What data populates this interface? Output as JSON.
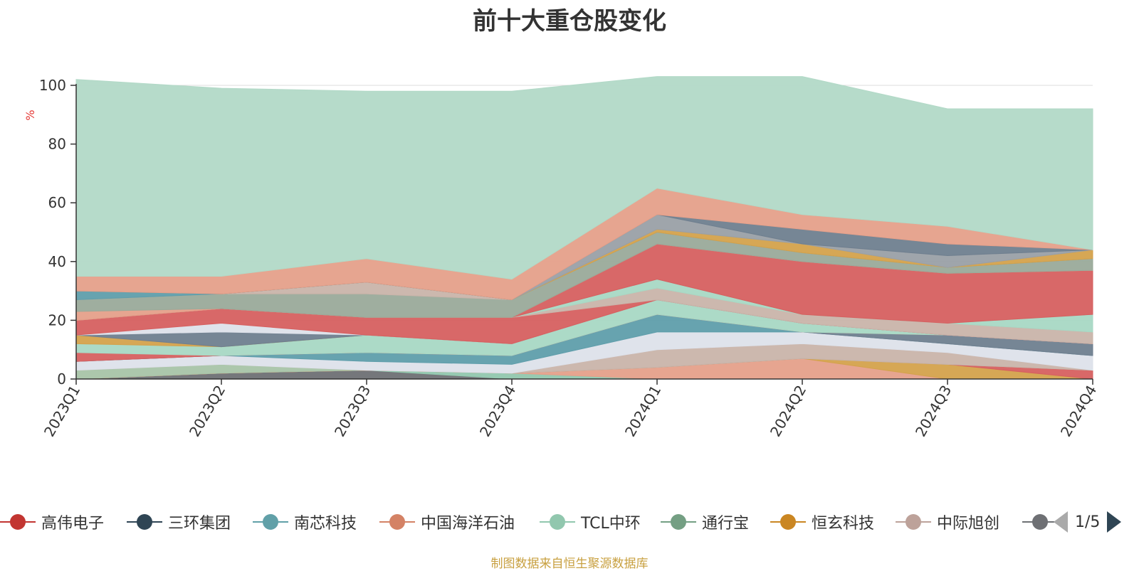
{
  "chart_data": {
    "type": "area",
    "title": "前十大重仓股变化",
    "ylabel": "%",
    "xlabel": "",
    "ylim": [
      0,
      100
    ],
    "yticks": [
      0,
      20,
      40,
      60,
      80,
      100
    ],
    "categories": [
      "2023Q1",
      "2023Q2",
      "2023Q3",
      "2023Q4",
      "2024Q1",
      "2024Q2",
      "2024Q3",
      "2024Q4"
    ],
    "stacked": true,
    "series": [
      {
        "name": "",
        "color": "#6e7074",
        "values": [
          0,
          2,
          3,
          0,
          0,
          0,
          0,
          0
        ]
      },
      {
        "name": "",
        "color": "#91c7ae",
        "values": [
          0,
          0,
          0,
          2,
          0,
          0,
          0,
          0
        ]
      },
      {
        "name": "",
        "color": "#e5a08a",
        "values": [
          0,
          0,
          0,
          0,
          4,
          7,
          0,
          0
        ]
      },
      {
        "name": "",
        "color": "#d4a24c",
        "values": [
          0,
          0,
          0,
          0,
          0,
          0,
          5,
          0
        ]
      },
      {
        "name": "",
        "color": "#d66060",
        "values": [
          0,
          0,
          0,
          0,
          0,
          0,
          0,
          3
        ]
      },
      {
        "name": "",
        "color": "#a8c4a8",
        "values": [
          3,
          3,
          0,
          0,
          0,
          0,
          0,
          0
        ]
      },
      {
        "name": "",
        "color": "#c9b4aa",
        "values": [
          0,
          0,
          0,
          0,
          6,
          5,
          4,
          0
        ]
      },
      {
        "name": "",
        "color": "#dde1ea",
        "values": [
          3,
          3,
          3,
          3,
          6,
          4,
          3,
          5
        ]
      },
      {
        "name": "",
        "color": "#5f9eab",
        "values": [
          0,
          0,
          3,
          3,
          6,
          0,
          0,
          0
        ]
      },
      {
        "name": "",
        "color": "#6f7f8f",
        "values": [
          0,
          0,
          0,
          0,
          0,
          0,
          3,
          4
        ]
      },
      {
        "name": "",
        "color": "#d66060",
        "values": [
          3,
          0,
          0,
          0,
          0,
          0,
          0,
          0
        ]
      },
      {
        "name": "",
        "color": "#a8d8c4",
        "values": [
          3,
          3,
          6,
          4,
          5,
          3,
          0,
          0
        ]
      },
      {
        "name": "",
        "color": "#d4a24c",
        "values": [
          3,
          0,
          0,
          0,
          0,
          0,
          0,
          0
        ]
      },
      {
        "name": "",
        "color": "#6f7f8f",
        "values": [
          0,
          5,
          0,
          0,
          0,
          0,
          0,
          0
        ]
      },
      {
        "name": "",
        "color": "#dde1ea",
        "values": [
          0,
          3,
          0,
          0,
          0,
          0,
          0,
          0
        ]
      },
      {
        "name": "",
        "color": "#d66060",
        "values": [
          5,
          5,
          6,
          9,
          0,
          0,
          0,
          0
        ]
      },
      {
        "name": "",
        "color": "#c9b4aa",
        "values": [
          0,
          0,
          0,
          0,
          4,
          3,
          4,
          4
        ]
      },
      {
        "name": "",
        "color": "#a8d8c4",
        "values": [
          0,
          0,
          0,
          0,
          3,
          0,
          0,
          6
        ]
      },
      {
        "name": "",
        "color": "#d66060",
        "values": [
          0,
          0,
          0,
          0,
          12,
          18,
          17,
          15
        ]
      },
      {
        "name": "",
        "color": "#e5a08a",
        "values": [
          3,
          0,
          0,
          0,
          0,
          0,
          0,
          0
        ]
      },
      {
        "name": "",
        "color": "#9aaa9a",
        "values": [
          4,
          5,
          8,
          6,
          4,
          3,
          2,
          4
        ]
      },
      {
        "name": "",
        "color": "#c9b4aa",
        "values": [
          0,
          0,
          4,
          0,
          0,
          0,
          0,
          0
        ]
      },
      {
        "name": "",
        "color": "#5f9eab",
        "values": [
          3,
          0,
          0,
          0,
          0,
          0,
          0,
          0
        ]
      },
      {
        "name": "",
        "color": "#d4a24c",
        "values": [
          0,
          0,
          0,
          0,
          1,
          3,
          0,
          3
        ]
      },
      {
        "name": "",
        "color": "#9aa0a6",
        "values": [
          0,
          0,
          0,
          0,
          5,
          0,
          4,
          0
        ]
      },
      {
        "name": "",
        "color": "#6f7f8f",
        "values": [
          0,
          0,
          0,
          0,
          0,
          5,
          4,
          0
        ]
      },
      {
        "name": "",
        "color": "#e5a08a",
        "values": [
          5,
          6,
          8,
          7,
          9,
          5,
          6,
          0
        ]
      },
      {
        "name": "",
        "color": "#b2d9c7",
        "values": [
          67,
          64,
          57,
          64,
          38,
          47,
          40,
          48
        ]
      }
    ]
  },
  "legend": {
    "items": [
      {
        "label": "高伟电子",
        "color": "#c23531"
      },
      {
        "label": "三环集团",
        "color": "#2f4554"
      },
      {
        "label": "南芯科技",
        "color": "#61a0a8"
      },
      {
        "label": "中国海洋石油",
        "color": "#d48265"
      },
      {
        "label": "TCL中环",
        "color": "#91c7ae"
      },
      {
        "label": "通行宝",
        "color": "#749f83"
      },
      {
        "label": "恒玄科技",
        "color": "#ca8622"
      },
      {
        "label": "中际旭创",
        "color": "#bda29a"
      },
      {
        "label": "",
        "color": "#6e7074"
      }
    ],
    "page": "1/5"
  },
  "source": "制图数据来自恒生聚源数据库"
}
